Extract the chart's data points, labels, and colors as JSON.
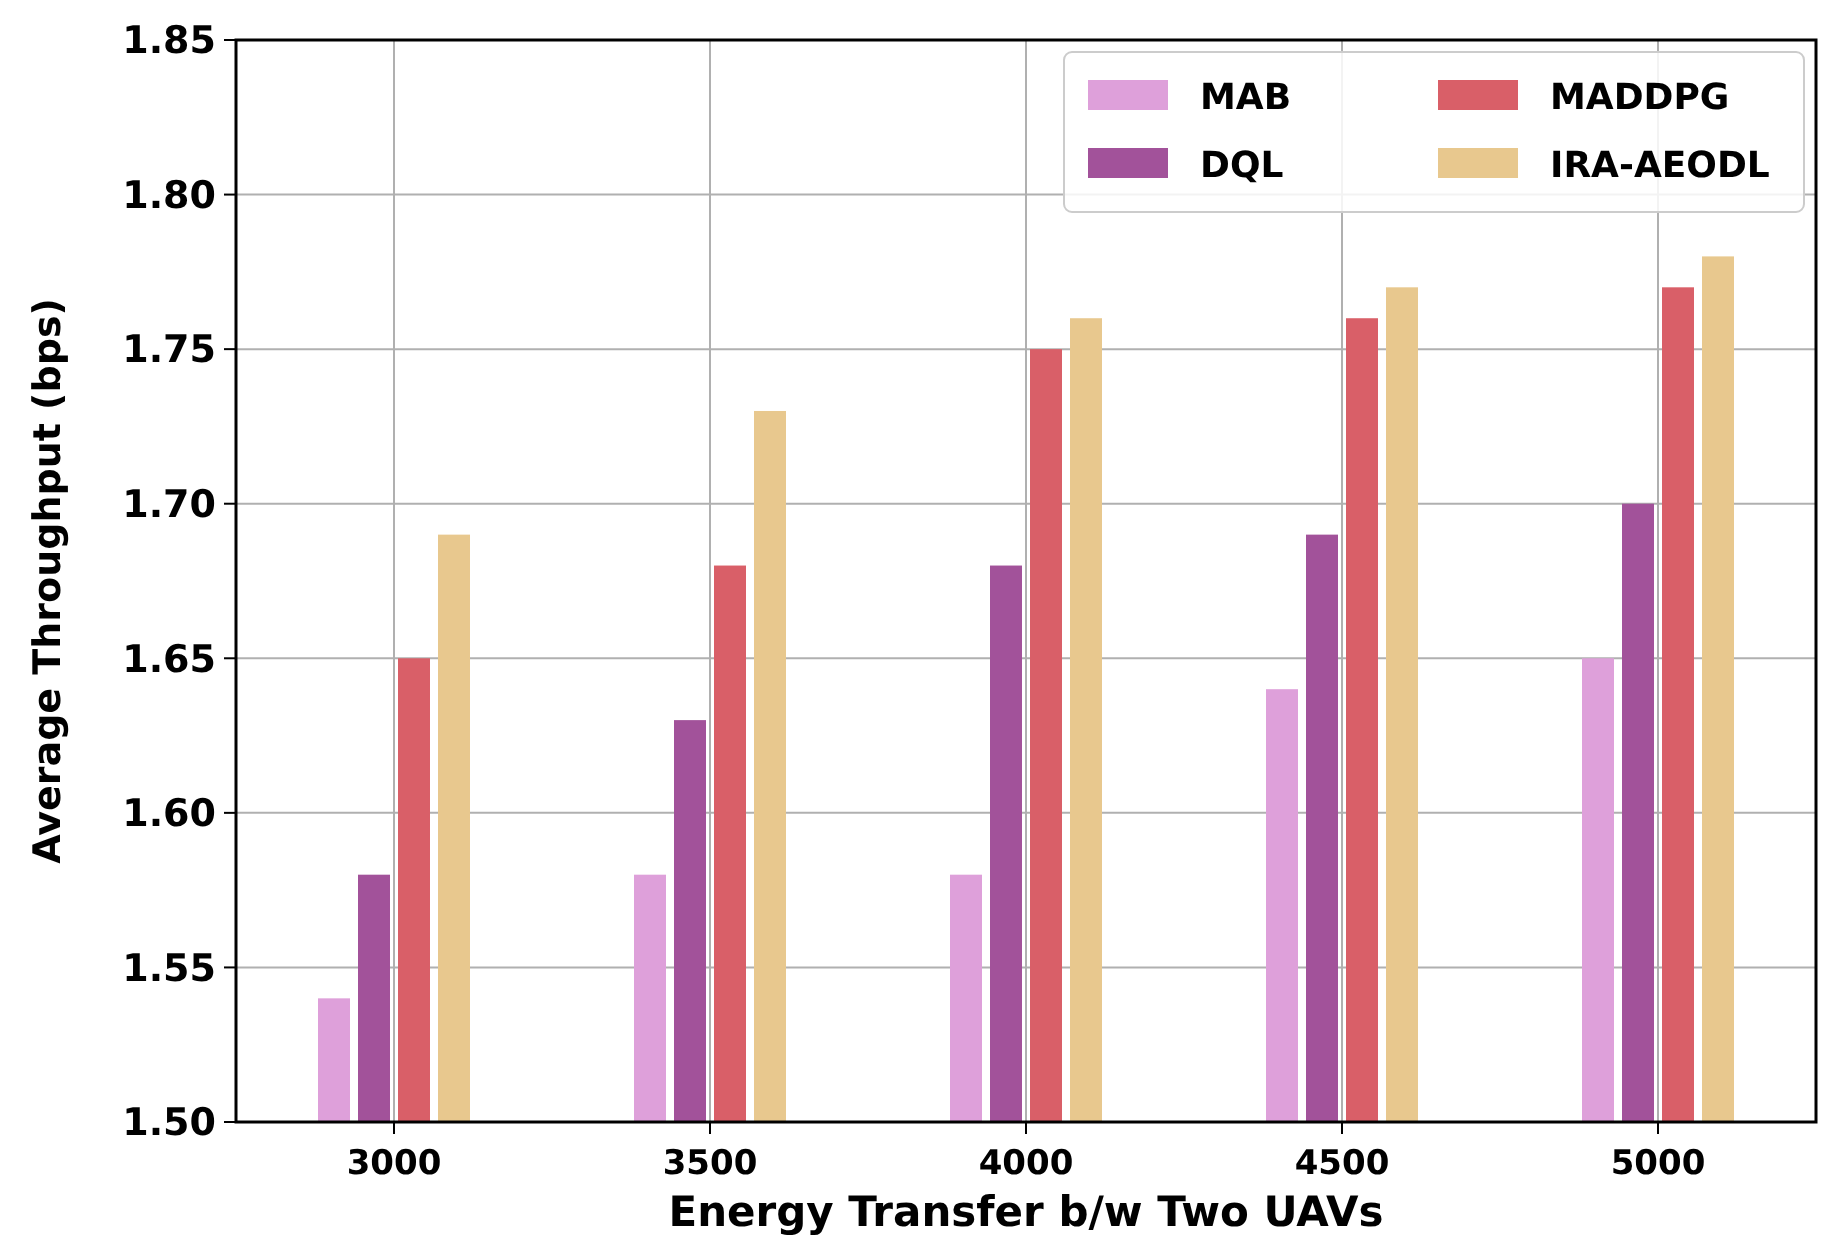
{
  "chart_data": {
    "type": "bar",
    "xlabel": "Energy Transfer b/w Two UAVs",
    "ylabel": "Average Throughput (bps)",
    "categories": [
      "3000",
      "3500",
      "4000",
      "4500",
      "5000"
    ],
    "series": [
      {
        "name": "MAB",
        "color": "#dea0da",
        "values": [
          1.54,
          1.58,
          1.58,
          1.64,
          1.65
        ]
      },
      {
        "name": "DQL",
        "color": "#a2529a",
        "values": [
          1.58,
          1.63,
          1.68,
          1.69,
          1.7
        ]
      },
      {
        "name": "MADDPG",
        "color": "#d95f68",
        "values": [
          1.65,
          1.68,
          1.75,
          1.76,
          1.77
        ]
      },
      {
        "name": "IRA-AEODL",
        "color": "#e8c88e",
        "values": [
          1.69,
          1.73,
          1.76,
          1.77,
          1.78
        ]
      }
    ],
    "ylim": [
      1.5,
      1.85
    ],
    "yticks": [
      {
        "value": 1.5,
        "label": "1.50"
      },
      {
        "value": 1.55,
        "label": "1.55"
      },
      {
        "value": 1.6,
        "label": "1.60"
      },
      {
        "value": 1.65,
        "label": "1.65"
      },
      {
        "value": 1.7,
        "label": "1.70"
      },
      {
        "value": 1.75,
        "label": "1.75"
      },
      {
        "value": 1.8,
        "label": "1.80"
      },
      {
        "value": 1.85,
        "label": "1.85"
      }
    ],
    "grid": true,
    "legend": "top right"
  }
}
